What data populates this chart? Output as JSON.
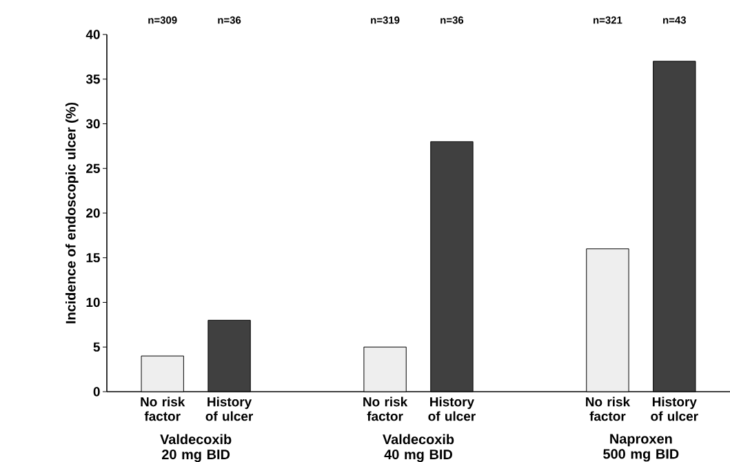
{
  "chart_data": {
    "type": "bar",
    "ylabel": "Incidence of endoscopic ulcer (%)",
    "categories": [
      "Valdecoxib 20 mg BID",
      "Valdecoxib 40 mg BID",
      "Naproxen 500 mg BID"
    ],
    "series": [
      {
        "name": "No risk factor",
        "color": "#eeeeee",
        "values": [
          4,
          5,
          16
        ]
      },
      {
        "name": "History of ulcer",
        "color": "#404040",
        "values": [
          8,
          28,
          37
        ]
      }
    ],
    "ylim": [
      0,
      40
    ],
    "yticks": [
      0,
      5,
      10,
      15,
      20,
      25,
      30,
      35,
      40
    ],
    "annotations": [
      "n=309",
      "n=36",
      "n=319",
      "n=36",
      "n=321",
      "n=43"
    ]
  }
}
